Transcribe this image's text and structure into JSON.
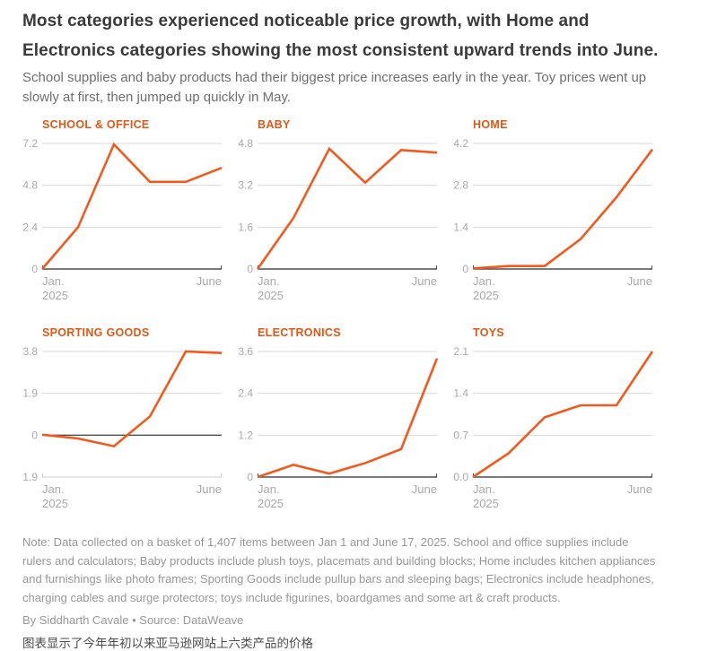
{
  "header": {
    "title": "Most categories experienced noticeable price growth, with Home and Electronics categories showing the most consistent upward trends into June.",
    "subtitle": "School supplies and baby products had their biggest price increases early in the year. Toy prices went up slowly at first, then jumped up quickly in May."
  },
  "colors": {
    "chart_title_orange": "#e25715",
    "line_orange": "#f25a1d",
    "gridline": "#d9d9d9",
    "baseline": "#4f4f4f",
    "frame_light": "#cccccc",
    "tick_label": "#a8a8a8",
    "headline_text": "#3a3a3a",
    "deck_text": "#6e6e6e",
    "note_text": "#979797",
    "caption_text": "#4c4c4c"
  },
  "chart_data": [
    {
      "type": "line",
      "title": "SCHOOL & OFFICE",
      "ytick_labels": [
        "7.2",
        "4.8",
        "2.4",
        "0"
      ],
      "ylim": [
        0,
        7.2
      ],
      "x_left_label": "Jan.",
      "x_left_sublabel": "2025",
      "x_right_label": "June",
      "values": [
        0,
        2.4,
        7.15,
        5.0,
        5.0,
        5.8
      ]
    },
    {
      "type": "line",
      "title": "BABY",
      "ytick_labels": [
        "4.8",
        "3.2",
        "1.6",
        "0"
      ],
      "ylim": [
        0,
        4.8
      ],
      "x_left_label": "Jan.",
      "x_left_sublabel": "2025",
      "x_right_label": "June",
      "values": [
        0,
        1.95,
        4.6,
        3.3,
        4.55,
        4.45
      ]
    },
    {
      "type": "line",
      "title": "HOME",
      "ytick_labels": [
        "4.2",
        "2.8",
        "1.4",
        "0"
      ],
      "ylim": [
        0,
        4.2
      ],
      "x_left_label": "Jan.",
      "x_left_sublabel": "2025",
      "x_right_label": "June",
      "values": [
        0.02,
        0.1,
        0.1,
        1.0,
        2.4,
        4.0
      ]
    },
    {
      "type": "line",
      "title": "SPORTING GOODS",
      "ytick_labels": [
        "3.8",
        "1.9",
        "0",
        "-1.9"
      ],
      "ylim": [
        -1.9,
        3.8
      ],
      "x_left_label": "Jan.",
      "x_left_sublabel": "2025",
      "x_right_label": "June",
      "values": [
        0.02,
        -0.15,
        -0.5,
        0.85,
        3.8,
        3.73
      ]
    },
    {
      "type": "line",
      "title": "ELECTRONICS",
      "ytick_labels": [
        "3.6",
        "2.4",
        "1.2",
        "0"
      ],
      "ylim": [
        0,
        3.6
      ],
      "x_left_label": "Jan.",
      "x_left_sublabel": "2025",
      "x_right_label": "June",
      "values": [
        0,
        0.35,
        0.1,
        0.4,
        0.8,
        3.4
      ]
    },
    {
      "type": "line",
      "title": "TOYS",
      "ytick_labels": [
        "2.1",
        "1.4",
        "0.7",
        "0.0"
      ],
      "ylim": [
        0,
        2.1
      ],
      "x_left_label": "Jan.",
      "x_left_sublabel": "2025",
      "x_right_label": "June",
      "values": [
        0,
        0.4,
        1.0,
        1.2,
        1.2,
        2.1
      ]
    }
  ],
  "footer": {
    "note": "Note: Data collected on a basket of 1,407 items between Jan 1 and June 17, 2025. School and office supplies include rulers and calculators; Baby products include plush toys, placemats and building blocks; Home includes kitchen appliances and furnishings like photo frames; Sporting Goods include pullup bars and sleeping bags; Electronics include headphones, charging cables and surge protectors; toys include figurines, boardgames and some art & craft products.",
    "byline": "By Siddharth Cavale • Source: DataWeave",
    "caption_zh": "图表显示了今年年初以来亚马逊网站上六类产品的价格"
  }
}
